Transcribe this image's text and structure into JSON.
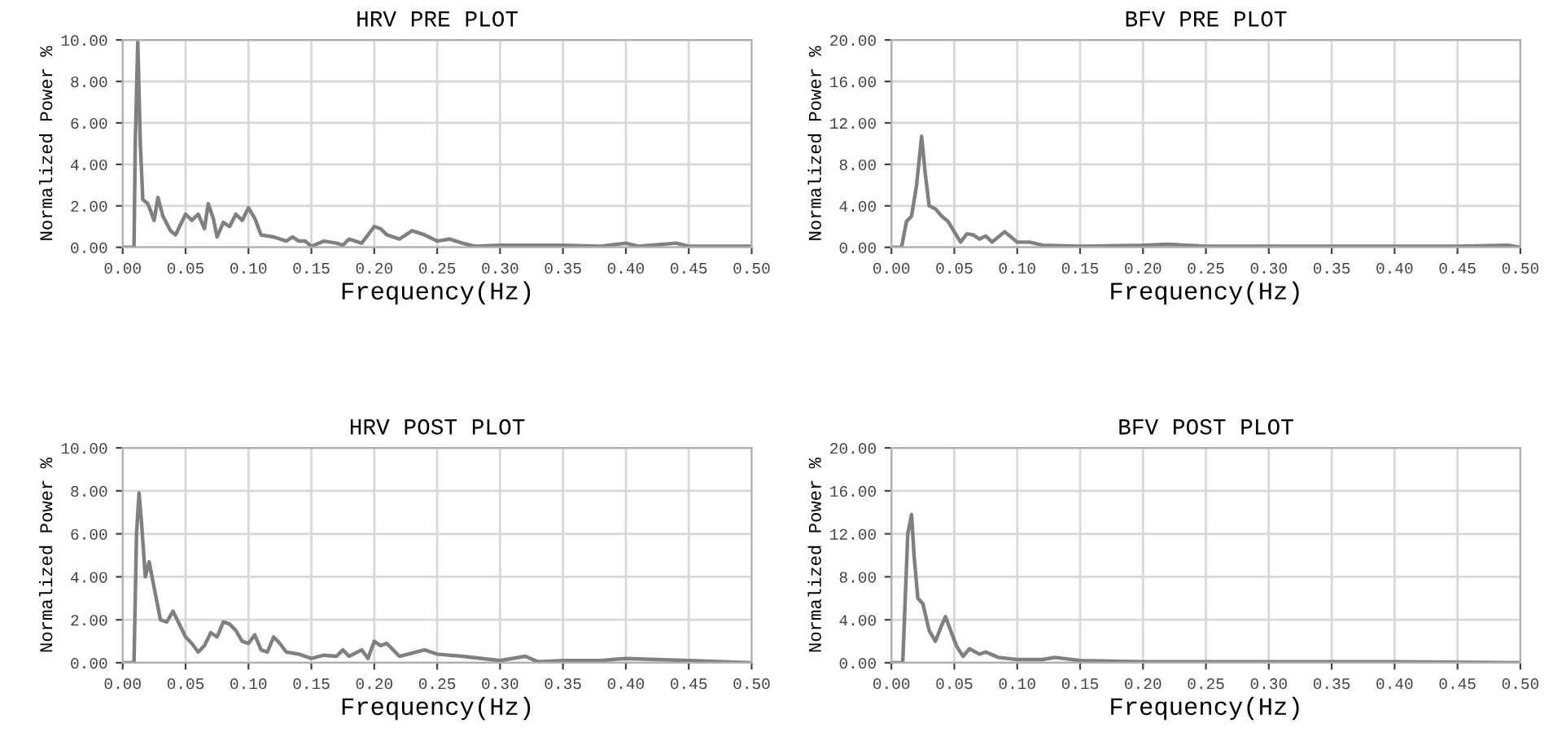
{
  "chart_data": [
    {
      "type": "line",
      "title": "HRV PRE PLOT",
      "xlabel": "Frequency(Hz)",
      "ylabel": "Normalized Power %",
      "grid": true,
      "marker": "none",
      "line_style": "solid",
      "xlim": [
        0,
        0.5
      ],
      "ylim": [
        0,
        10
      ],
      "xticks": [
        {
          "value": 0,
          "label": "0.00"
        },
        {
          "value": 0.05,
          "label": "0.05"
        },
        {
          "value": 0.1,
          "label": "0.10"
        },
        {
          "value": 0.15,
          "label": "0.15"
        },
        {
          "value": 0.2,
          "label": "0.20"
        },
        {
          "value": 0.25,
          "label": "0.25"
        },
        {
          "value": 0.3,
          "label": "0.30"
        },
        {
          "value": 0.35,
          "label": "0.35"
        },
        {
          "value": 0.4,
          "label": "0.40"
        },
        {
          "value": 0.45,
          "label": "0.45"
        },
        {
          "value": 0.5,
          "label": "0.50"
        }
      ],
      "yticks": [
        {
          "value": 0,
          "label": "0.00"
        },
        {
          "value": 2,
          "label": "2.00"
        },
        {
          "value": 4,
          "label": "4.00"
        },
        {
          "value": 6,
          "label": "6.00"
        },
        {
          "value": 8,
          "label": "8.00"
        },
        {
          "value": 10,
          "label": "10.00"
        }
      ],
      "series": [
        {
          "color": "#808080",
          "x": [
            0,
            0.009,
            0.01,
            0.012,
            0.014,
            0.016,
            0.02,
            0.025,
            0.028,
            0.032,
            0.038,
            0.042,
            0.05,
            0.055,
            0.06,
            0.065,
            0.068,
            0.072,
            0.075,
            0.08,
            0.085,
            0.09,
            0.095,
            0.1,
            0.105,
            0.11,
            0.12,
            0.13,
            0.135,
            0.14,
            0.145,
            0.15,
            0.16,
            0.17,
            0.175,
            0.18,
            0.19,
            0.2,
            0.205,
            0.21,
            0.22,
            0.23,
            0.24,
            0.25,
            0.26,
            0.27,
            0.28,
            0.3,
            0.35,
            0.38,
            0.4,
            0.41,
            0.44,
            0.45,
            0.5
          ],
          "values": [
            0,
            0,
            5,
            9.9,
            5,
            2.3,
            2.1,
            1.3,
            2.4,
            1.5,
            0.8,
            0.6,
            1.6,
            1.3,
            1.6,
            0.9,
            2.1,
            1.4,
            0.5,
            1.2,
            1.0,
            1.6,
            1.3,
            1.9,
            1.4,
            0.6,
            0.5,
            0.3,
            0.5,
            0.3,
            0.3,
            0.05,
            0.3,
            0.2,
            0.1,
            0.4,
            0.2,
            1.0,
            0.9,
            0.6,
            0.4,
            0.8,
            0.6,
            0.3,
            0.4,
            0.2,
            0.05,
            0.1,
            0.1,
            0.05,
            0.2,
            0.05,
            0.2,
            0.05,
            0.05
          ]
        }
      ]
    },
    {
      "type": "line",
      "title": "BFV PRE PLOT",
      "xlabel": "Frequency(Hz)",
      "ylabel": "Normalized Power %",
      "grid": true,
      "marker": "none",
      "line_style": "solid",
      "xlim": [
        0,
        0.5
      ],
      "ylim": [
        0,
        20
      ],
      "xticks": [
        {
          "value": 0,
          "label": "0.00"
        },
        {
          "value": 0.05,
          "label": "0.05"
        },
        {
          "value": 0.1,
          "label": "0.10"
        },
        {
          "value": 0.15,
          "label": "0.15"
        },
        {
          "value": 0.2,
          "label": "0.20"
        },
        {
          "value": 0.25,
          "label": "0.25"
        },
        {
          "value": 0.3,
          "label": "0.30"
        },
        {
          "value": 0.35,
          "label": "0.35"
        },
        {
          "value": 0.4,
          "label": "0.40"
        },
        {
          "value": 0.45,
          "label": "0.45"
        },
        {
          "value": 0.5,
          "label": "0.50"
        }
      ],
      "yticks": [
        {
          "value": 0,
          "label": "0.00"
        },
        {
          "value": 4,
          "label": "4.00"
        },
        {
          "value": 8,
          "label": "8.00"
        },
        {
          "value": 12,
          "label": "12.00"
        },
        {
          "value": 16,
          "label": "16.00"
        },
        {
          "value": 20,
          "label": "20.00"
        }
      ],
      "series": [
        {
          "color": "#808080",
          "x": [
            0,
            0.008,
            0.012,
            0.016,
            0.02,
            0.024,
            0.027,
            0.03,
            0.035,
            0.04,
            0.045,
            0.05,
            0.055,
            0.06,
            0.065,
            0.07,
            0.075,
            0.08,
            0.09,
            0.095,
            0.1,
            0.11,
            0.12,
            0.15,
            0.2,
            0.22,
            0.25,
            0.3,
            0.35,
            0.4,
            0.45,
            0.49,
            0.5
          ],
          "values": [
            0,
            0,
            2.5,
            3,
            6,
            10.7,
            7,
            4,
            3.7,
            3,
            2.5,
            1.5,
            0.5,
            1.3,
            1.2,
            0.8,
            1.1,
            0.5,
            1.5,
            1.0,
            0.5,
            0.5,
            0.2,
            0.1,
            0.2,
            0.3,
            0.1,
            0.1,
            0.1,
            0.1,
            0.1,
            0.2,
            0
          ]
        }
      ]
    },
    {
      "type": "line",
      "title": "HRV POST PLOT",
      "xlabel": "Frequency(Hz)",
      "ylabel": "Normalized Power %",
      "grid": true,
      "marker": "none",
      "line_style": "solid",
      "xlim": [
        0,
        0.5
      ],
      "ylim": [
        0,
        10
      ],
      "xticks": [
        {
          "value": 0,
          "label": "0.00"
        },
        {
          "value": 0.05,
          "label": "0.05"
        },
        {
          "value": 0.1,
          "label": "0.10"
        },
        {
          "value": 0.15,
          "label": "0.15"
        },
        {
          "value": 0.2,
          "label": "0.20"
        },
        {
          "value": 0.25,
          "label": "0.25"
        },
        {
          "value": 0.3,
          "label": "0.30"
        },
        {
          "value": 0.35,
          "label": "0.35"
        },
        {
          "value": 0.4,
          "label": "0.40"
        },
        {
          "value": 0.45,
          "label": "0.45"
        },
        {
          "value": 0.5,
          "label": "0.50"
        }
      ],
      "yticks": [
        {
          "value": 0,
          "label": "0.00"
        },
        {
          "value": 2,
          "label": "2.00"
        },
        {
          "value": 4,
          "label": "4.00"
        },
        {
          "value": 6,
          "label": "6.00"
        },
        {
          "value": 8,
          "label": "8.00"
        },
        {
          "value": 10,
          "label": "10.00"
        }
      ],
      "series": [
        {
          "color": "#808080",
          "x": [
            0,
            0.009,
            0.011,
            0.013,
            0.015,
            0.018,
            0.021,
            0.025,
            0.03,
            0.035,
            0.04,
            0.045,
            0.05,
            0.055,
            0.06,
            0.065,
            0.07,
            0.075,
            0.08,
            0.085,
            0.09,
            0.095,
            0.1,
            0.105,
            0.11,
            0.115,
            0.12,
            0.125,
            0.13,
            0.14,
            0.15,
            0.16,
            0.17,
            0.175,
            0.18,
            0.19,
            0.195,
            0.2,
            0.205,
            0.21,
            0.215,
            0.22,
            0.24,
            0.25,
            0.27,
            0.3,
            0.32,
            0.33,
            0.35,
            0.38,
            0.4,
            0.45,
            0.5
          ],
          "values": [
            0,
            0,
            6,
            7.9,
            6.5,
            4.0,
            4.7,
            3.5,
            2.0,
            1.9,
            2.4,
            1.8,
            1.2,
            0.9,
            0.5,
            0.8,
            1.4,
            1.2,
            1.9,
            1.8,
            1.5,
            1.0,
            0.9,
            1.3,
            0.6,
            0.5,
            1.2,
            0.9,
            0.5,
            0.4,
            0.2,
            0.35,
            0.3,
            0.6,
            0.3,
            0.6,
            0.2,
            1.0,
            0.8,
            0.9,
            0.6,
            0.3,
            0.6,
            0.4,
            0.3,
            0.1,
            0.3,
            0.05,
            0.1,
            0.1,
            0.2,
            0.1,
            0
          ]
        }
      ]
    },
    {
      "type": "line",
      "title": "BFV POST PLOT",
      "xlabel": "Frequency(Hz)",
      "ylabel": "Normalized Power %",
      "grid": true,
      "marker": "none",
      "line_style": "solid",
      "xlim": [
        0,
        0.5
      ],
      "ylim": [
        0,
        20
      ],
      "xticks": [
        {
          "value": 0,
          "label": "0.00"
        },
        {
          "value": 0.05,
          "label": "0.05"
        },
        {
          "value": 0.1,
          "label": "0.10"
        },
        {
          "value": 0.15,
          "label": "0.15"
        },
        {
          "value": 0.2,
          "label": "0.20"
        },
        {
          "value": 0.25,
          "label": "0.25"
        },
        {
          "value": 0.3,
          "label": "0.30"
        },
        {
          "value": 0.35,
          "label": "0.35"
        },
        {
          "value": 0.4,
          "label": "0.40"
        },
        {
          "value": 0.45,
          "label": "0.45"
        },
        {
          "value": 0.5,
          "label": "0.50"
        }
      ],
      "yticks": [
        {
          "value": 0,
          "label": "0.00"
        },
        {
          "value": 4,
          "label": "4.00"
        },
        {
          "value": 8,
          "label": "8.00"
        },
        {
          "value": 12,
          "label": "12.00"
        },
        {
          "value": 16,
          "label": "16.00"
        },
        {
          "value": 20,
          "label": "20.00"
        }
      ],
      "series": [
        {
          "color": "#808080",
          "x": [
            0,
            0.009,
            0.011,
            0.013,
            0.016,
            0.018,
            0.021,
            0.025,
            0.03,
            0.035,
            0.04,
            0.043,
            0.047,
            0.052,
            0.057,
            0.062,
            0.07,
            0.075,
            0.085,
            0.1,
            0.12,
            0.13,
            0.15,
            0.2,
            0.25,
            0.3,
            0.35,
            0.4,
            0.5
          ],
          "values": [
            0,
            0,
            6,
            12,
            13.8,
            10,
            6,
            5.5,
            3,
            2,
            3.5,
            4.3,
            3,
            1.5,
            0.6,
            1.3,
            0.8,
            1.0,
            0.5,
            0.3,
            0.3,
            0.5,
            0.2,
            0.1,
            0.1,
            0.1,
            0.1,
            0.1,
            0
          ]
        }
      ]
    }
  ]
}
